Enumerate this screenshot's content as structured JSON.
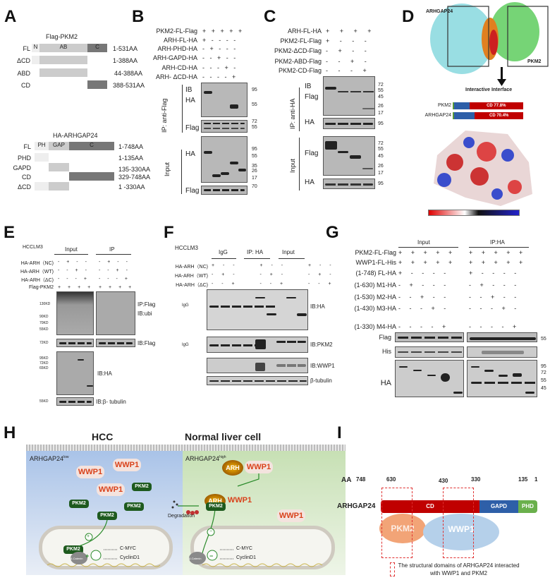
{
  "panels": {
    "a": "A",
    "b": "B",
    "c": "C",
    "d": "D",
    "e": "E",
    "f": "F",
    "g": "G",
    "h": "H",
    "i": "I"
  },
  "A": {
    "pkm2_title": "Flag-PKM2",
    "pkm2_rows": [
      {
        "name": "FL",
        "range": "1-531AA"
      },
      {
        "name": "ΔCD",
        "range": "1-388AA"
      },
      {
        "name": "ABD",
        "range": "44-388AA"
      },
      {
        "name": "CD",
        "range": "388-531AA"
      }
    ],
    "pkm2_domains": {
      "n": "N",
      "ab": "AB",
      "c": "C"
    },
    "arh_title": "HA-ARHGAP24",
    "arh_rows": [
      {
        "name": "FL",
        "range": "1-748AA"
      },
      {
        "name": "PHD",
        "range": "1-135AA"
      },
      {
        "name": "GAPD",
        "range": "135-330AA"
      },
      {
        "name": "CD",
        "range": "329-748AA"
      },
      {
        "name": "ΔCD",
        "range": "1 -330AA"
      }
    ],
    "arh_domains": {
      "ph": "PH",
      "gap": "GAP",
      "c": "C"
    }
  },
  "B": {
    "rows": [
      {
        "label": "PKM2-FL-Flag",
        "signs": "+ + + + +"
      },
      {
        "label": "ARH-FL-HA",
        "signs": "+ - - - -"
      },
      {
        "label": "ARH-PHD-HA",
        "signs": "- + - - -"
      },
      {
        "label": "ARH-GAPD-HA",
        "signs": "- - + - -"
      },
      {
        "label": "ARH-CD-HA",
        "signs": "- - - + -"
      },
      {
        "label": "ARH- ΔCD-HA",
        "signs": "- - - - +"
      }
    ],
    "ib": "IB",
    "ha": "HA",
    "flag": "Flag",
    "ip": "IP:  anti-Flag",
    "input": "Input",
    "ha2": "HA",
    "flag2": "Flag",
    "mw": {
      "a": "95",
      "b": "55",
      "c": "72",
      "d": "55",
      "e": "95",
      "f": "55",
      "g": "35",
      "h": "26",
      "i": "17",
      "j": "70"
    }
  },
  "C": {
    "rows": [
      {
        "label": "ARH-FL-HA",
        "signs": "+ + + +"
      },
      {
        "label": "PKM2-FL-Flag",
        "signs": "+ - - -"
      },
      {
        "label": "PKM2-ΔCD-Flag",
        "signs": "- + - -"
      },
      {
        "label": "PKM2-ABD-Flag",
        "signs": "- - + -"
      },
      {
        "label": "PKM2-CD-Flag",
        "signs": "- - - +"
      }
    ],
    "ib": "IB",
    "flag": "Flag",
    "ha": "HA",
    "ip": "IP:  anti-HA",
    "input": "Input",
    "flag2": "Flag",
    "ha2": "HA",
    "mw": {
      "a": "72",
      "b": "55",
      "c": "45",
      "d": "26",
      "e": "17",
      "f": "95",
      "g": "72",
      "h": "55",
      "i": "45",
      "j": "26",
      "k": "17",
      "l": "95"
    }
  },
  "D": {
    "left_box": "ARHGAP24",
    "right_box": "PKM2",
    "arrow_label": "Interactive Interface",
    "bars": [
      {
        "name": "PKM2",
        "label": "CD 77.8%",
        "fraction": 0.778
      },
      {
        "name": "ARHGAP24",
        "label": "CD 70.4%",
        "fraction": 0.704
      }
    ],
    "colors": {
      "cd": "#c00000",
      "other": "#2e5fa8",
      "green": "#5a9a3a"
    }
  },
  "E": {
    "cell": "HCCLM3",
    "input": "Input",
    "ip": "IP",
    "rows": [
      {
        "label": "HA-ARH（NC)",
        "a": "- + - -",
        "b": "- + - -"
      },
      {
        "label": "HA-ARH（WT)",
        "a": "- - + -",
        "b": "- - + -"
      },
      {
        "label": "HA-ARH（ΔC)",
        "a": "- - - +",
        "b": "- - - +"
      },
      {
        "label": "Flag-PKM2",
        "a": "+ + + +",
        "b": "+ + + +"
      }
    ],
    "ib": [
      "IP:Flag",
      "IB:ubi",
      "IB:Flag",
      "IB:HA",
      "IB:β- tubulin"
    ],
    "mw": [
      "130KD",
      "90KD",
      "70KD",
      "55KD",
      "72KD",
      "95KD",
      "72KD",
      "65KD",
      "55KD"
    ]
  },
  "F": {
    "cell": "HCCLM3",
    "igg": "IgG",
    "ip": "IP:  HA",
    "input": "Input",
    "rows": [
      {
        "label": "HA-ARH（NC)",
        "signs": "+ - -   + - -   + - -"
      },
      {
        "label": "HA-ARH（WT)",
        "signs": "- + -   - + -   - + -"
      },
      {
        "label": "HA-ARH（ΔC)",
        "signs": "- - +   - - +   - - +"
      }
    ],
    "ib": [
      "IB:HA",
      "IB:PKM2",
      "IB:WWP1",
      "β-tubulin"
    ],
    "igg_marker": "IgG"
  },
  "G": {
    "input": "Input",
    "ip": "IP:HA",
    "rows": [
      {
        "label": "PKM2-FL-Flag",
        "a": "+ + + + +",
        "b": "+ + + + +"
      },
      {
        "label": "WWP1-FL-His",
        "a": "+ + + + +",
        "b": "+ + + + +"
      },
      {
        "label": "(1-748) FL-HA",
        "a": "+ - - - -",
        "b": "+ - - - -"
      },
      {
        "label": "(1-630) M1-HA",
        "a": "- + - - -",
        "b": "- + - - -"
      },
      {
        "label": "(1-530) M2-HA",
        "a": "- - + - -",
        "b": "- - + - -"
      },
      {
        "label": "(1-430) M3-HA",
        "a": "- - - + -",
        "b": "- - - + -"
      },
      {
        "label": "(1-330) M4-HA",
        "a": "- - - - +",
        "b": "- - - - +"
      }
    ],
    "ib": [
      "Flag",
      "His",
      "HA"
    ],
    "mw": [
      "55",
      "95",
      "72",
      "55",
      "45"
    ]
  },
  "H": {
    "left_title": "HCC",
    "right_title": "Normal liver cell",
    "left_state": "ARHGAP24",
    "left_sup": "low",
    "right_state": "ARHGAP24",
    "right_sup": "high",
    "wwp1": "WWP1",
    "pkm2": "PKM2",
    "arh": "ARH",
    "degradation": "Degradation",
    "cmyc": "C-MYC",
    "cyclin": "CyclinD1",
    "bcat": "β-Catenin",
    "plus": "+",
    "minus": "−"
  },
  "I": {
    "aa": "AA",
    "positions": [
      "748",
      "630",
      "430",
      "330",
      "135",
      "1"
    ],
    "protein": "ARHGAP24",
    "cd": "CD",
    "gapd": "GAPD",
    "phd": "PHD",
    "pkm2": "PKM2",
    "wwp1": "WWP1",
    "legend": "The structural domains of ARHGAP24 interacted with WWP1 and PKM2",
    "colors": {
      "cd": "#c00000",
      "gapd": "#2e5fa8",
      "phd": "#6ab04c",
      "pkm2": "#f2a477",
      "wwp1": "#b5d0ea",
      "dash": "#e03030"
    }
  }
}
